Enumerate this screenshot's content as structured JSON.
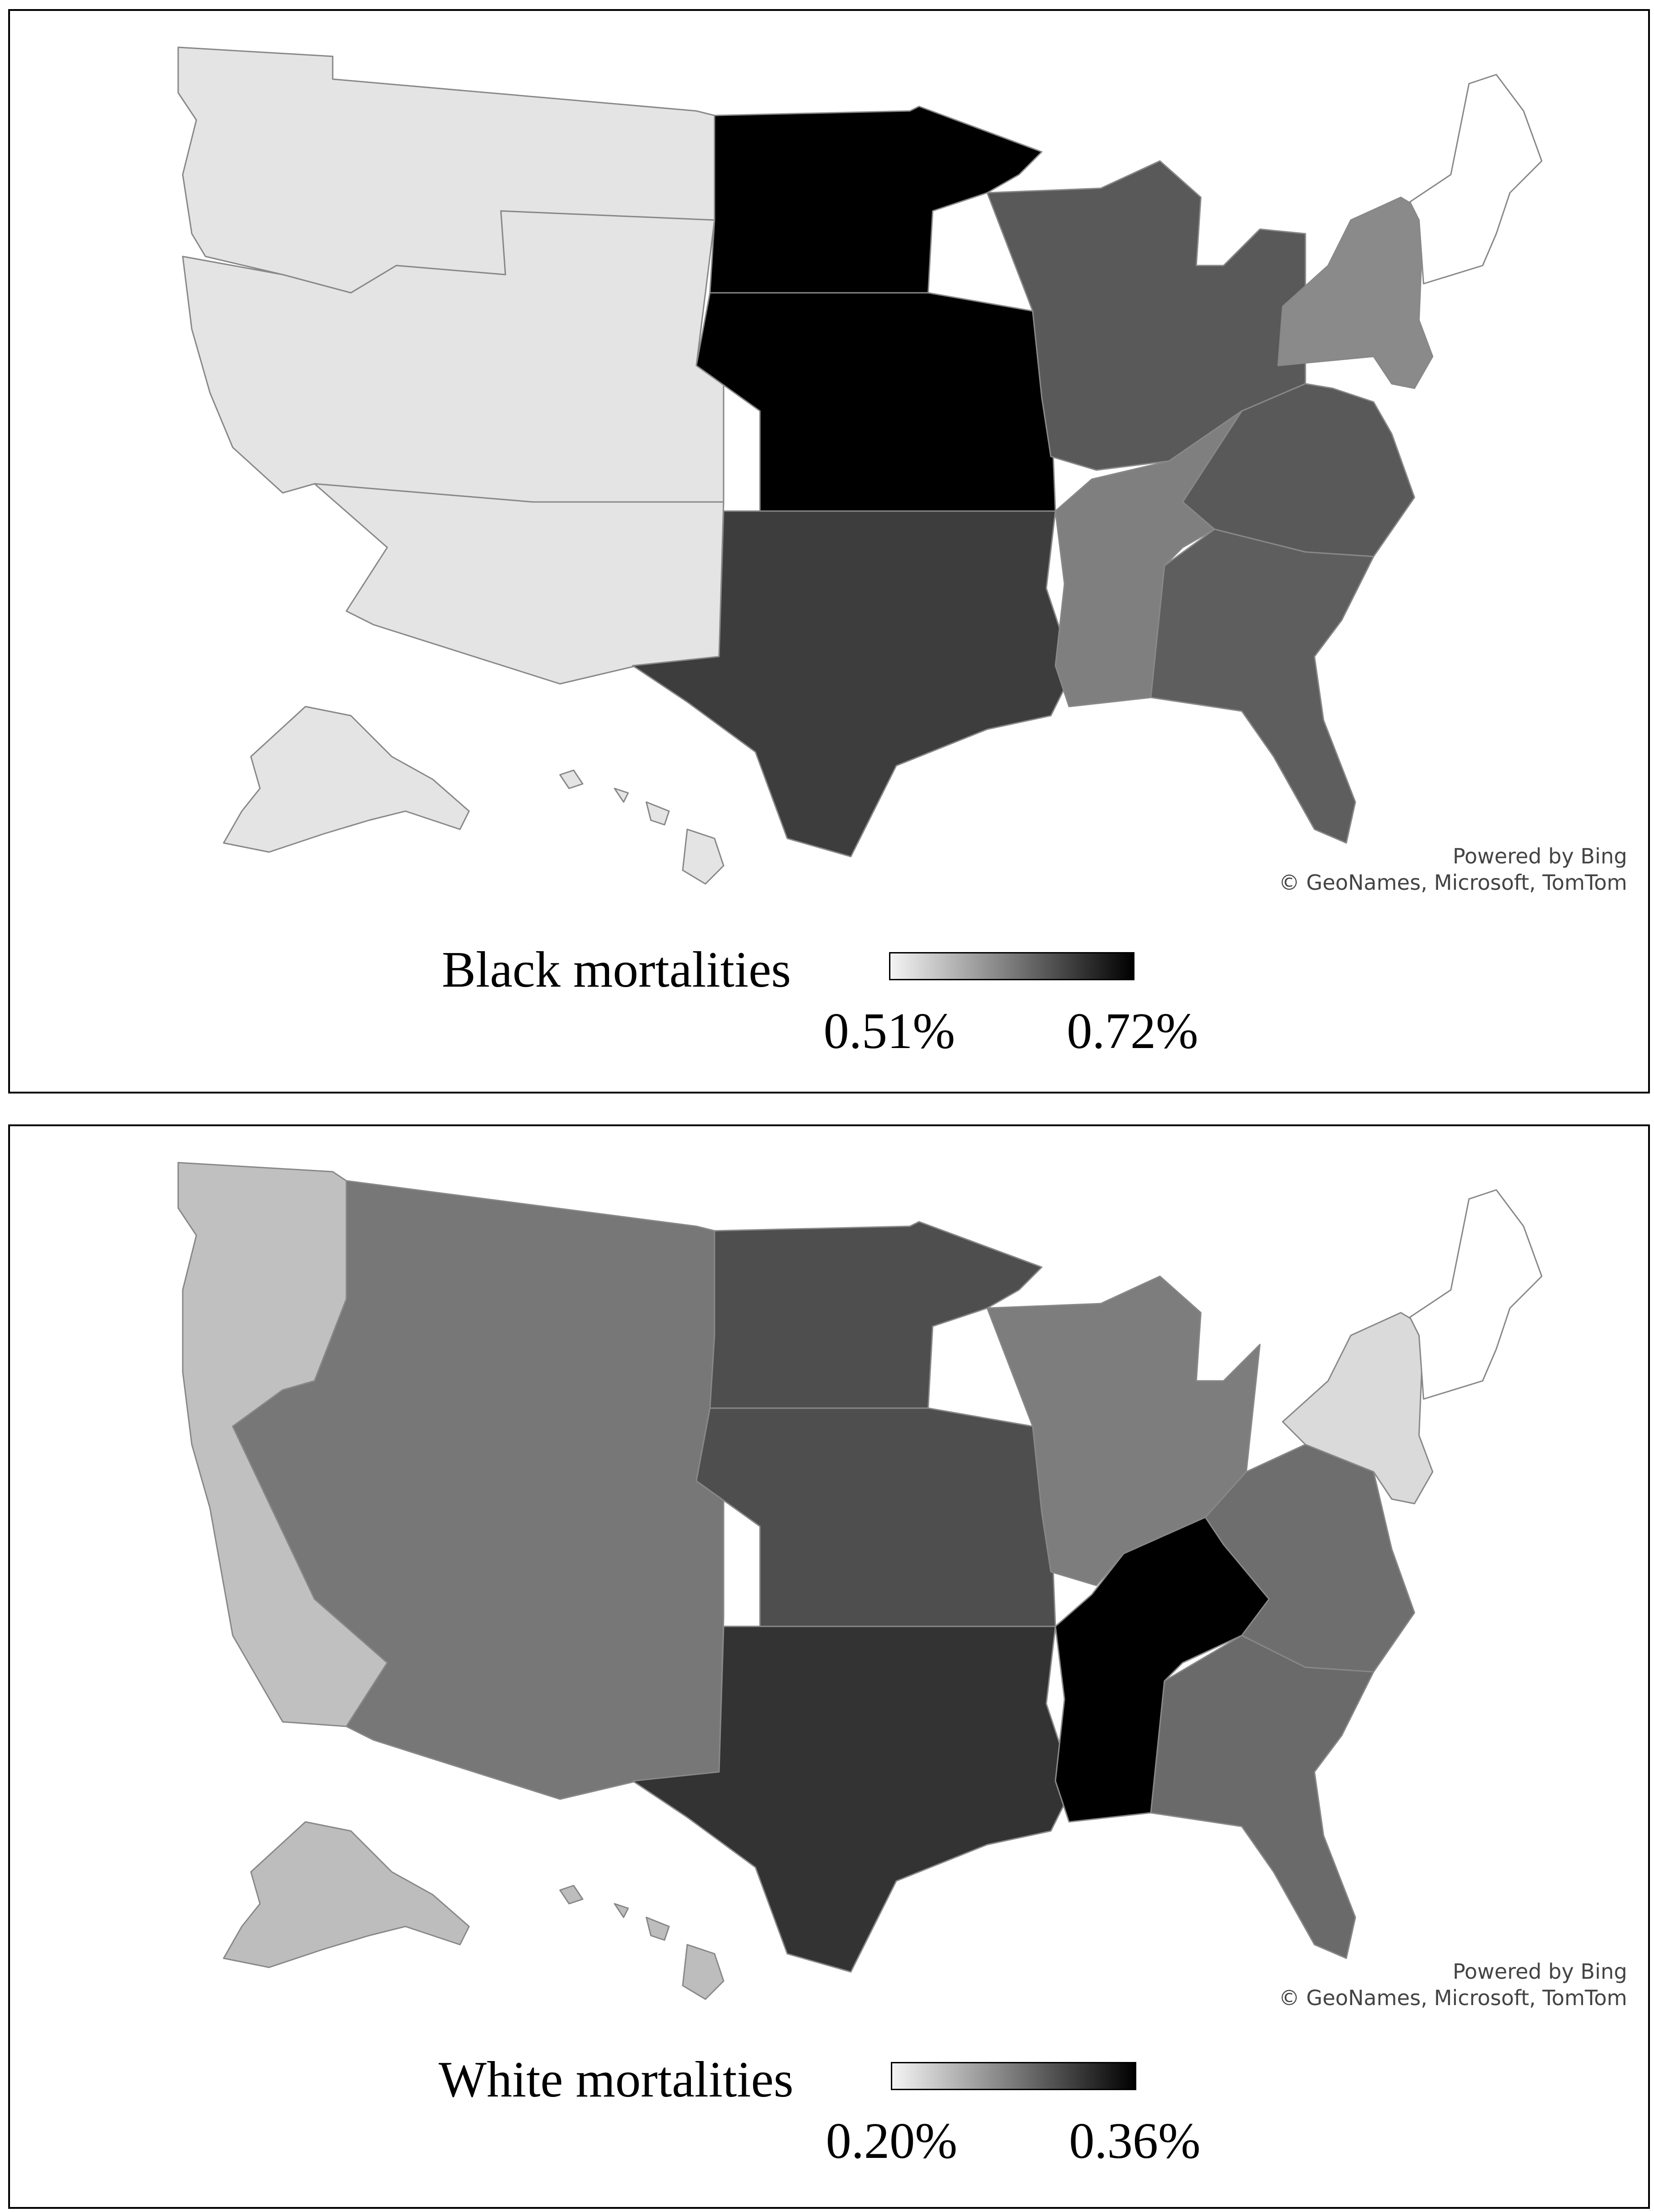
{
  "maps": [
    {
      "legend_title": "Black mortalities",
      "legend_min": "0.51%",
      "legend_max": "0.72%",
      "gradient_start": "#f4f4f4",
      "gradient_end": "#000000",
      "attribution_line1": "Powered by Bing",
      "attribution_line2": "© GeoNames, Microsoft, TomTom",
      "colors": {
        "northwest": "#e4e4e4",
        "west": "#e4e4e4",
        "southwest": "#e4e4e4",
        "alaska": "#e4e4e4",
        "hawaii": "#e4e4e4",
        "plains_north": "#000000",
        "plains_central": "#000000",
        "upper_midwest": "#000000",
        "south_central": "#3d3d3d",
        "great_lakes": "#595959",
        "appalachia": "#595959",
        "east_south_central": "#7f7f7f",
        "southeast": "#5e5e5e",
        "mid_atlantic": "#8a8a8a",
        "new_england": "#ffffff"
      }
    },
    {
      "legend_title": "White mortalities",
      "legend_min": "0.20%",
      "legend_max": "0.36%",
      "gradient_start": "#f4f4f4",
      "gradient_end": "#000000",
      "attribution_line1": "Powered by Bing",
      "attribution_line2": "© GeoNames, Microsoft, TomTom",
      "colors": {
        "pacific": "#c0c0c0",
        "alaska": "#bdbdbd",
        "hawaii": "#bdbdbd",
        "mountain": "#777777",
        "plains_north": "#4e4e4e",
        "plains_central": "#4e4e4e",
        "south_central": "#333333",
        "great_lakes": "#7d7d7d",
        "ohio_valley": "#6e6e6e",
        "east_south_central": "#000000",
        "southeast": "#6a6a6a",
        "mid_atlantic": "#dadada",
        "new_england": "#ffffff"
      }
    }
  ]
}
